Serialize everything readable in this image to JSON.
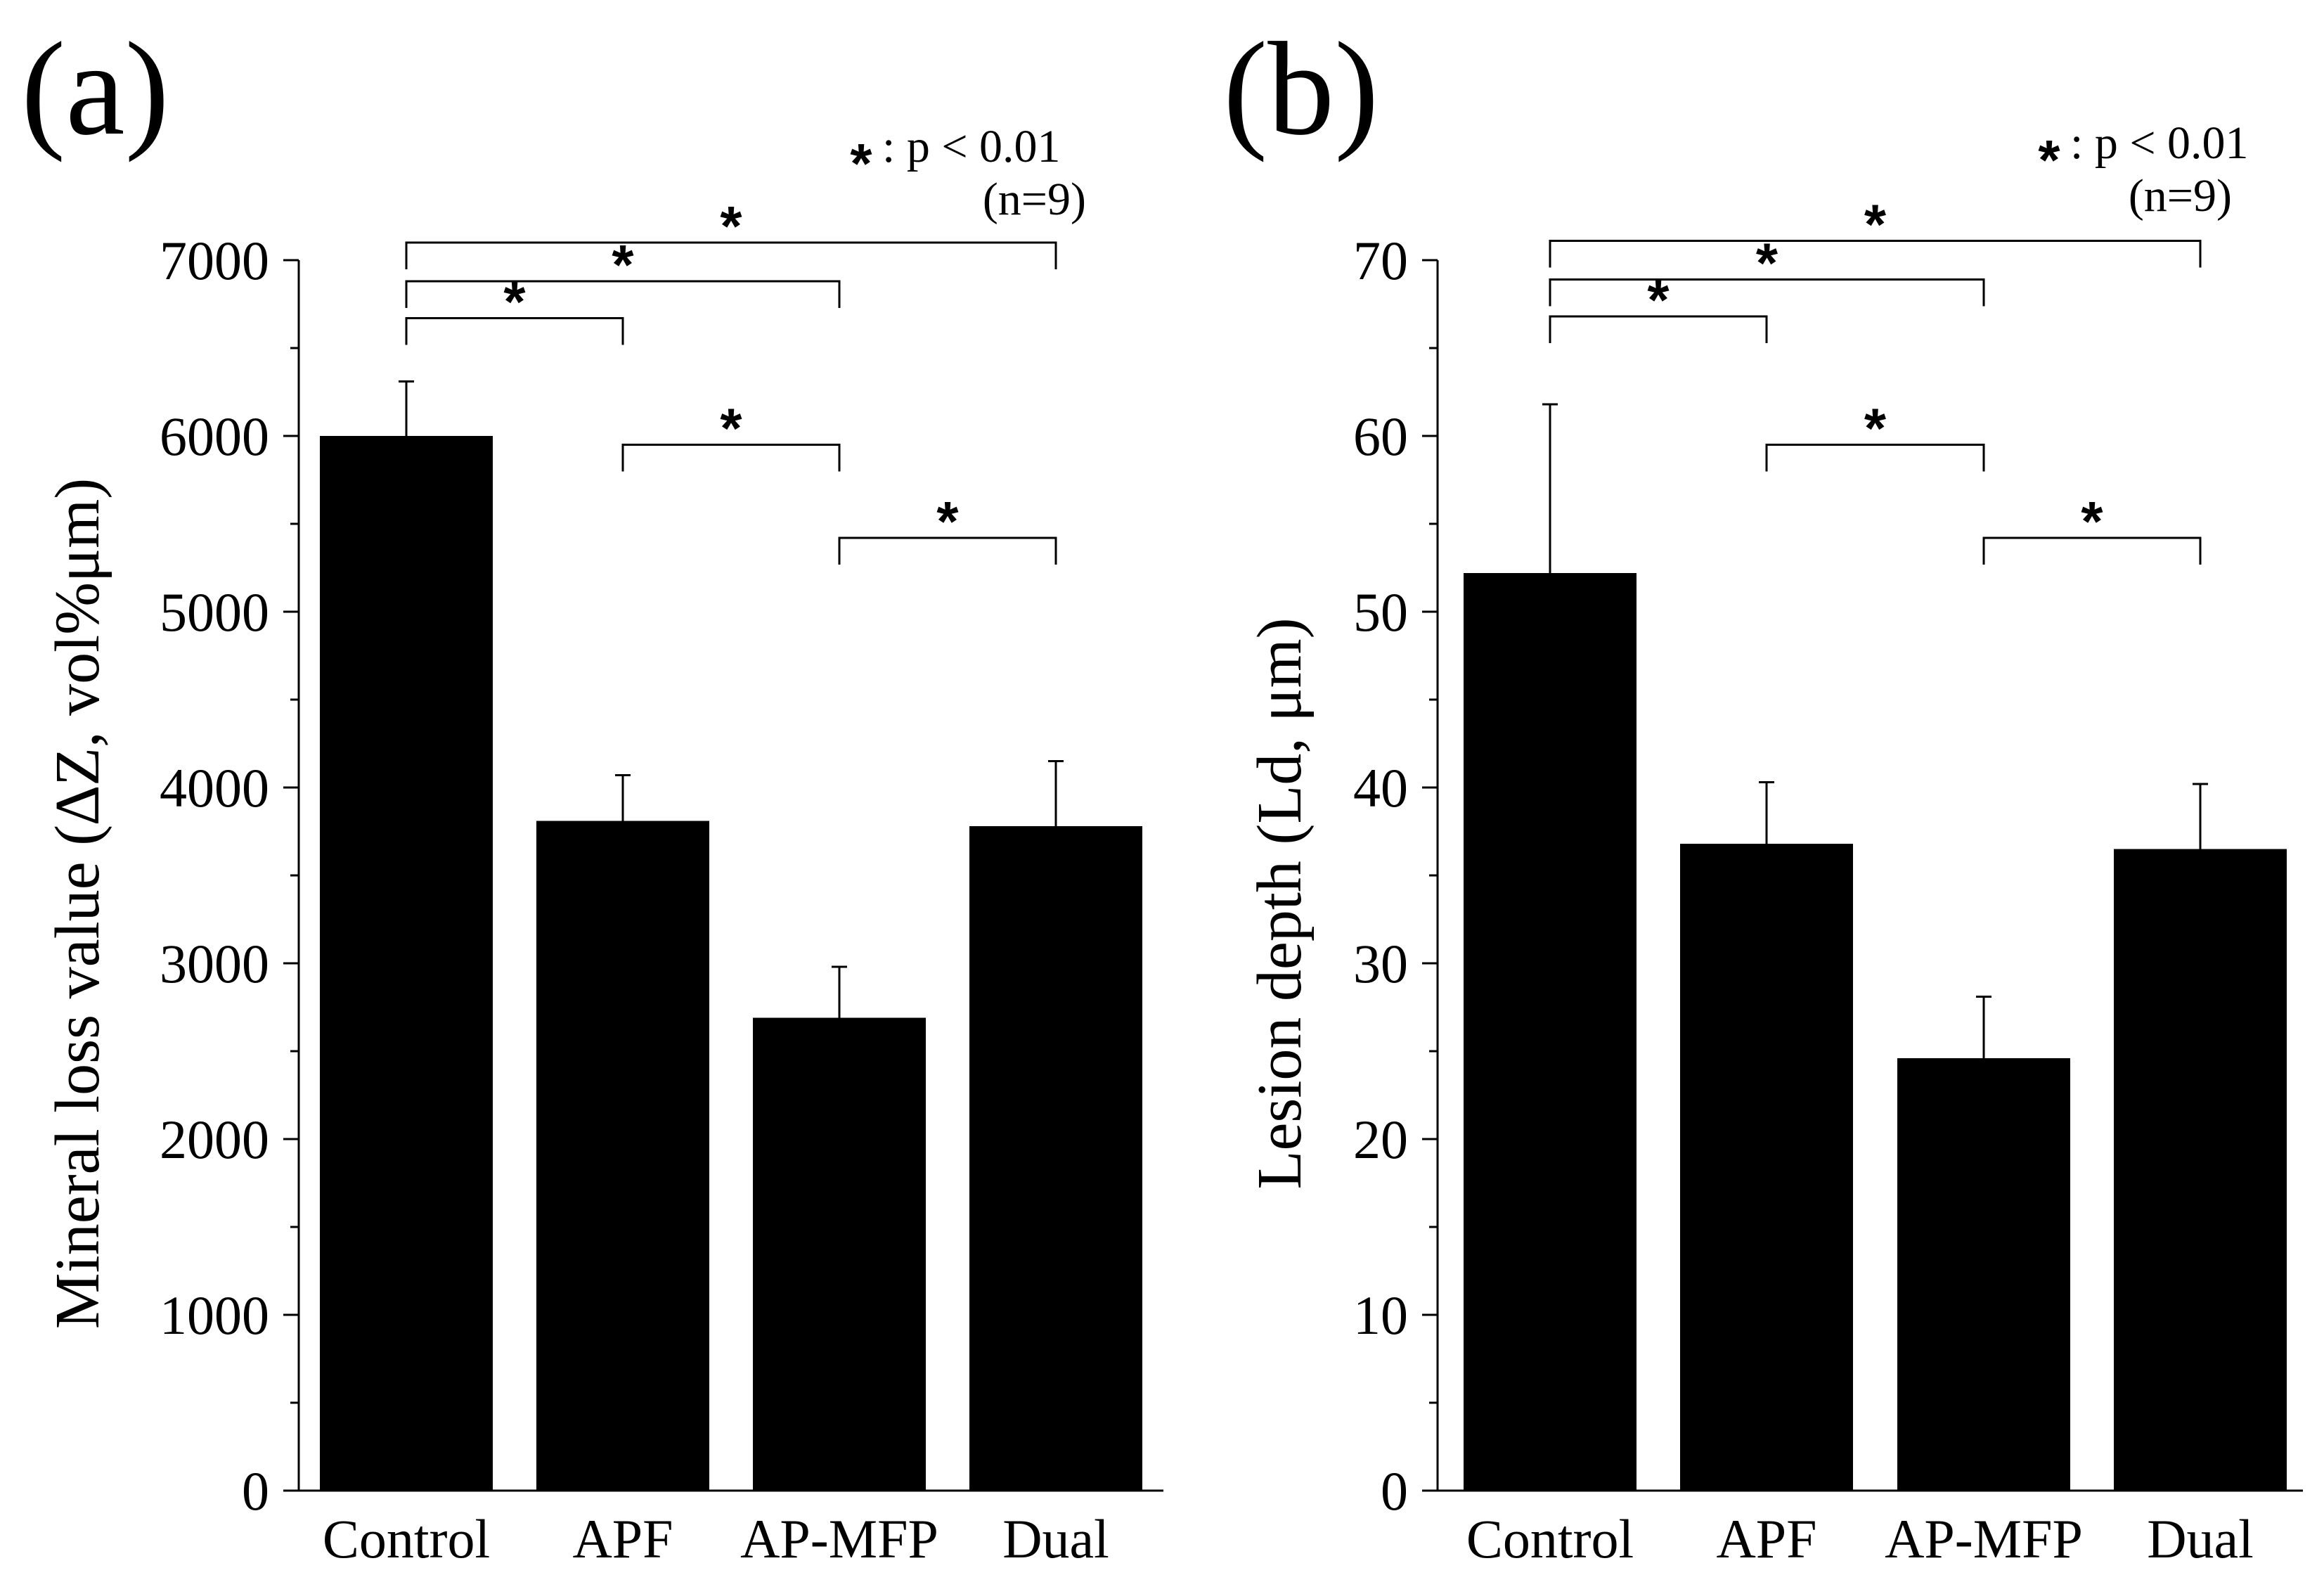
{
  "chart_data": [
    {
      "type": "bar",
      "panel_label": "(a)",
      "categories": [
        "Control",
        "APF",
        "AP-MFP",
        "Dual"
      ],
      "values": [
        6000,
        3810,
        2690,
        3780
      ],
      "error_upper": [
        6310,
        4070,
        2980,
        4150
      ],
      "ylabel": "Mineral loss value (∆Z, vol%μm)",
      "ylim": [
        0,
        7000
      ],
      "yticks": [
        0,
        1000,
        2000,
        3000,
        4000,
        5000,
        6000,
        7000
      ],
      "ytick_labels": [
        "0",
        "1000",
        "2000",
        "3000",
        "4000",
        "5000",
        "6000",
        "7000"
      ],
      "minor_tick_step": 500,
      "bar_color": "#000000",
      "significance": {
        "star": "*",
        "p_label": ": p < 0.01",
        "n_label": "(n=9)",
        "pairs": [
          {
            "from": 0,
            "to": 3,
            "y": 7100,
            "star": "*"
          },
          {
            "from": 0,
            "to": 2,
            "y": 6880,
            "star": "*"
          },
          {
            "from": 0,
            "to": 1,
            "y": 6670,
            "star": "*"
          },
          {
            "from": 1,
            "to": 2,
            "y": 5950,
            "star": "*"
          },
          {
            "from": 2,
            "to": 3,
            "y": 5420,
            "star": "*"
          }
        ]
      }
    },
    {
      "type": "bar",
      "panel_label": "(b)",
      "categories": [
        "Control",
        "APF",
        "AP-MFP",
        "Dual"
      ],
      "values": [
        52.2,
        36.8,
        24.6,
        36.5
      ],
      "error_upper": [
        61.8,
        40.3,
        28.1,
        40.2
      ],
      "ylabel": "Lesion depth (Ld, μm)",
      "ylim": [
        0,
        70
      ],
      "yticks": [
        0,
        10,
        20,
        30,
        40,
        50,
        60,
        70
      ],
      "ytick_labels": [
        "0",
        "10",
        "20",
        "30",
        "40",
        "50",
        "60",
        "70"
      ],
      "minor_tick_step": 5,
      "bar_color": "#000000",
      "significance": {
        "star": "*",
        "p_label": ": p < 0.01",
        "n_label": "(n=9)",
        "pairs": [
          {
            "from": 0,
            "to": 3,
            "y": 71.1,
            "star": "*"
          },
          {
            "from": 0,
            "to": 2,
            "y": 68.9,
            "star": "*"
          },
          {
            "from": 0,
            "to": 1,
            "y": 66.8,
            "star": "*"
          },
          {
            "from": 1,
            "to": 2,
            "y": 59.5,
            "star": "*"
          },
          {
            "from": 2,
            "to": 3,
            "y": 54.2,
            "star": "*"
          }
        ]
      }
    }
  ]
}
